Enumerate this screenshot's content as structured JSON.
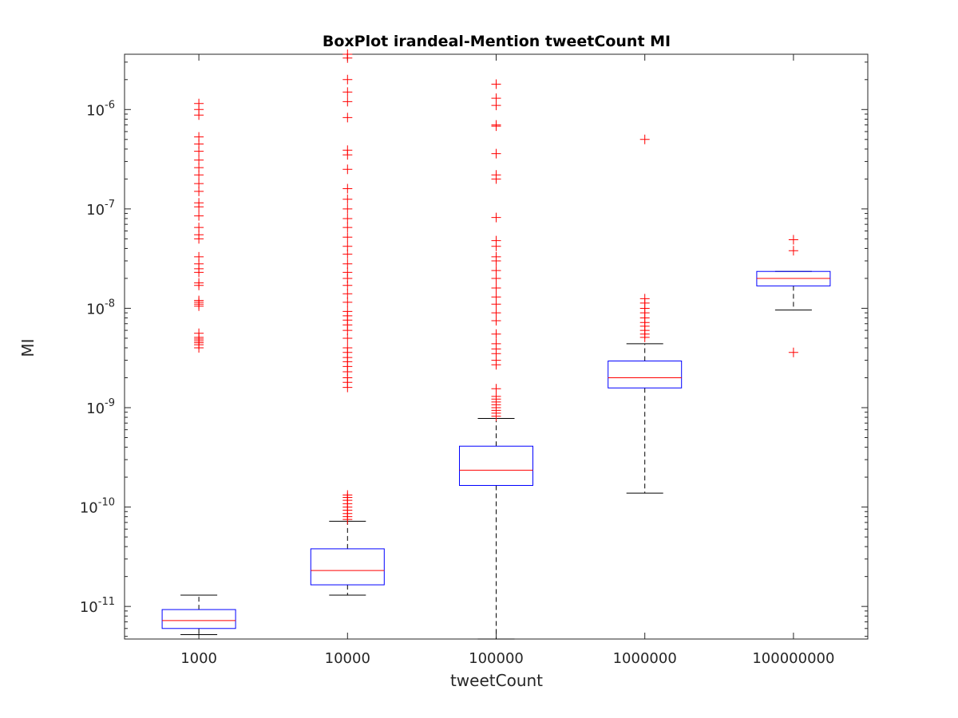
{
  "chart_data": {
    "type": "boxplot",
    "title": "BoxPlot irandeal-Mention tweetCount MI",
    "xlabel": "tweetCount",
    "ylabel": "MI",
    "yscale": "log",
    "ylim": [
      4.7e-12,
      3.6e-06
    ],
    "yticks": [
      {
        "value": 1e-11,
        "base": "10",
        "exp": "-11"
      },
      {
        "value": 1e-10,
        "base": "10",
        "exp": "-10"
      },
      {
        "value": 1e-09,
        "base": "10",
        "exp": "-9"
      },
      {
        "value": 1e-08,
        "base": "10",
        "exp": "-8"
      },
      {
        "value": 1e-07,
        "base": "10",
        "exp": "-7"
      },
      {
        "value": 1e-06,
        "base": "10",
        "exp": "-6"
      }
    ],
    "categories": [
      "1000",
      "10000",
      "100000",
      "1000000",
      "100000000"
    ],
    "colors": {
      "box": "#0000ff",
      "median": "#ff0000",
      "whisker": "#000000",
      "outlier": "#ff0000",
      "axis": "#262626"
    },
    "boxes": [
      {
        "category": "1000",
        "whisker_low": 5.2e-12,
        "q1": 6e-12,
        "median": 7.2e-12,
        "q3": 9.3e-12,
        "whisker_high": 1.3e-11,
        "outliers": [
          4e-09,
          4.3e-09,
          4.5e-09,
          4.7e-09,
          4.9e-09,
          5.1e-09,
          5.6e-09,
          1.05e-08,
          1.1e-08,
          1.15e-08,
          1.2e-08,
          1.7e-08,
          1.8e-08,
          2.3e-08,
          2.5e-08,
          2.8e-08,
          3.3e-08,
          5e-08,
          5.5e-08,
          6.5e-08,
          8.5e-08,
          1.05e-07,
          1.15e-07,
          1.5e-07,
          1.8e-07,
          2.2e-07,
          2.6e-07,
          3.1e-07,
          3.8e-07,
          4.5e-07,
          5.3e-07,
          8.8e-07,
          1e-06,
          1.15e-06
        ]
      },
      {
        "category": "10000",
        "whisker_low": 1.3e-11,
        "q1": 1.65e-11,
        "median": 2.3e-11,
        "q3": 3.8e-11,
        "whisker_high": 7.2e-11,
        "outliers": [
          7.5e-11,
          8e-11,
          8.6e-11,
          9.3e-11,
          1e-10,
          1.08e-10,
          1.17e-10,
          1.25e-10,
          1.32e-10,
          1.6e-09,
          1.8e-09,
          2e-09,
          2.3e-09,
          2.6e-09,
          2.9e-09,
          3.2e-09,
          3.6e-09,
          4e-09,
          5e-09,
          6e-09,
          6.8e-09,
          7.6e-09,
          8.4e-09,
          9.3e-09,
          1.15e-08,
          1.4e-08,
          1.7e-08,
          2e-08,
          2.3e-08,
          2.8e-08,
          3.5e-08,
          4.2e-08,
          5.2e-08,
          6.5e-08,
          8e-08,
          1e-07,
          1.25e-07,
          1.6e-07,
          2.5e-07,
          3.5e-07,
          3.9e-07,
          8.3e-07,
          1.2e-06,
          1.5e-06,
          2e-06,
          3.3e-06,
          3.6e-06
        ]
      },
      {
        "category": "100000",
        "whisker_low": 4.7e-12,
        "q1": 1.65e-10,
        "median": 2.35e-10,
        "q3": 4.1e-10,
        "whisker_high": 7.8e-10,
        "outliers": [
          8.2e-10,
          8.8e-10,
          9.4e-10,
          1e-09,
          1.07e-09,
          1.14e-09,
          1.22e-09,
          1.3e-09,
          1.55e-09,
          2.7e-09,
          3e-09,
          3.5e-09,
          3.9e-09,
          4.4e-09,
          5.5e-09,
          7.5e-09,
          9e-09,
          1.1e-08,
          1.3e-08,
          1.6e-08,
          2e-08,
          2.4e-08,
          3e-08,
          3.3e-08,
          4.2e-08,
          4.8e-08,
          8.2e-08,
          2e-07,
          2.2e-07,
          3.6e-07,
          6.8e-07,
          7e-07,
          1.1e-06,
          1.3e-06,
          1.8e-06
        ]
      },
      {
        "category": "1000000",
        "whisker_low": 1.38e-10,
        "q1": 1.58e-09,
        "median": 2e-09,
        "q3": 2.95e-09,
        "whisker_high": 4.4e-09,
        "outliers": [
          5.1e-09,
          5.5e-09,
          6e-09,
          6.6e-09,
          7.2e-09,
          8e-09,
          9e-09,
          1e-08,
          1.13e-08,
          1.25e-08,
          5e-07
        ]
      },
      {
        "category": "100000000",
        "whisker_low": 9.6e-09,
        "q1": 1.68e-08,
        "median": 2e-08,
        "q3": 2.35e-08,
        "whisker_high": 2.35e-08,
        "outliers": [
          3.6e-09,
          3.8e-08,
          4.9e-08
        ]
      }
    ]
  }
}
